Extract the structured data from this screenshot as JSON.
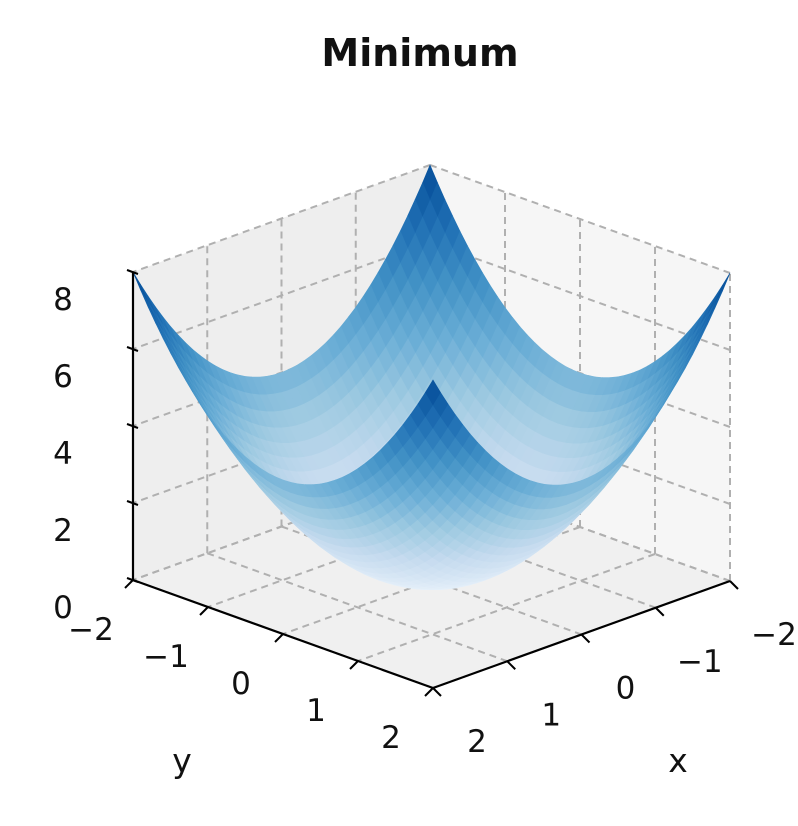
{
  "chart_data": {
    "type": "surface",
    "title": "Minimum",
    "xlabel": "x",
    "ylabel": "y",
    "zlabel": "",
    "xlim": [
      -2,
      2
    ],
    "ylim": [
      -2,
      2
    ],
    "zlim": [
      0,
      8
    ],
    "x_ticks": [
      "−2",
      "−1",
      "0",
      "1",
      "2"
    ],
    "y_ticks": [
      "−2",
      "−1",
      "0",
      "1",
      "2"
    ],
    "z_ticks": [
      "0",
      "2",
      "4",
      "6",
      "8"
    ],
    "function": "z = x^2 + y^2",
    "colormap": "Blues",
    "grid": true,
    "grid_style": "dashed",
    "pane_color": "#f2f2f2",
    "grid_color": "#b0b0b0"
  }
}
